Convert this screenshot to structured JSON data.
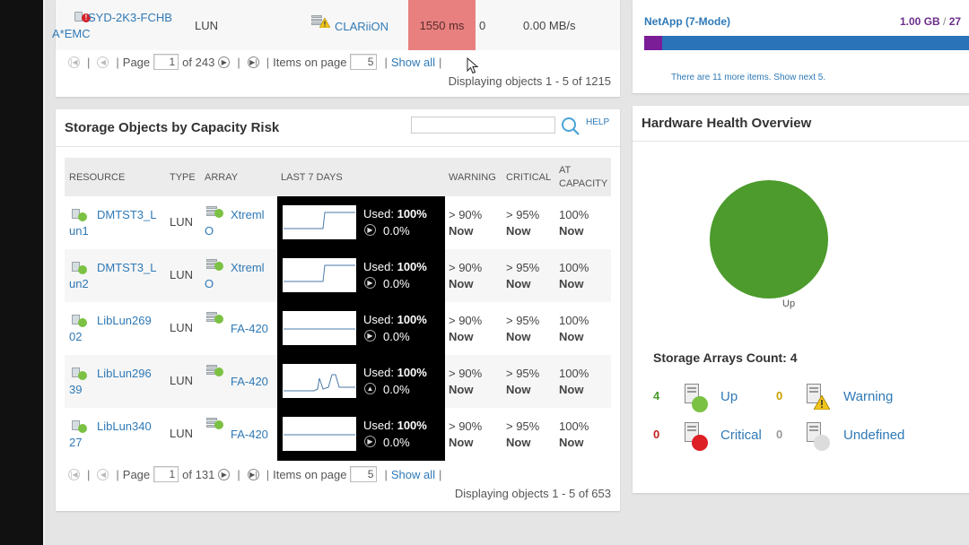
{
  "top_panel": {
    "row": {
      "resource_line1": "SYD-2K3-FCHB",
      "resource_line2": "A*EMC",
      "type": "LUN",
      "array": "CLARiiON",
      "latency": "1550 ms",
      "io": "0",
      "throughput": "0.00 MB/s"
    },
    "pager": {
      "page_label": "Page",
      "page": "1",
      "of_text": "of 243",
      "items_label": "Items on page",
      "items": "5",
      "show_all": "Show all"
    },
    "displaying": "Displaying objects 1 - 5 of 1215"
  },
  "netapp": {
    "name": "NetApp (7-Mode)",
    "used": "1.00 GB",
    "total": "27",
    "used_fraction": 0.05,
    "more_items": "There are 11 more items. Show next 5."
  },
  "capacity_panel": {
    "title": "Storage Objects by Capacity Risk",
    "help": "HELP",
    "headers": [
      "RESOURCE",
      "TYPE",
      "ARRAY",
      "LAST 7 DAYS",
      "WARNING",
      "CRITICAL",
      "AT",
      "CAPACITY"
    ],
    "rows": [
      {
        "res1": "DMTST3_L",
        "res2": "un1",
        "type": "LUN",
        "arr1": "Xtreml",
        "arr2": "O",
        "used_label": "Used:",
        "used": "100%",
        "trend": "0.0%",
        "trend_dir": "right",
        "spark": "step",
        "warning": "> 90%",
        "critical": "> 95%",
        "capacity": "100%",
        "when": "Now"
      },
      {
        "res1": "DMTST3_L",
        "res2": "un2",
        "type": "LUN",
        "arr1": "Xtreml",
        "arr2": "O",
        "used_label": "Used:",
        "used": "100%",
        "trend": "0.0%",
        "trend_dir": "right",
        "spark": "step",
        "warning": "> 90%",
        "critical": "> 95%",
        "capacity": "100%",
        "when": "Now"
      },
      {
        "res1": "LibLun269",
        "res2": "02",
        "type": "LUN",
        "arr1": "FA-420",
        "arr2": "",
        "used_label": "Used:",
        "used": "100%",
        "trend": "0.0%",
        "trend_dir": "right",
        "spark": "flat",
        "warning": "> 90%",
        "critical": "> 95%",
        "capacity": "100%",
        "when": "Now"
      },
      {
        "res1": "LibLun296",
        "res2": "39",
        "type": "LUN",
        "arr1": "FA-420",
        "arr2": "",
        "used_label": "Used:",
        "used": "100%",
        "trend": "0.0%",
        "trend_dir": "up",
        "spark": "bump",
        "warning": "> 90%",
        "critical": "> 95%",
        "capacity": "100%",
        "when": "Now"
      },
      {
        "res1": "LibLun340",
        "res2": "27",
        "type": "LUN",
        "arr1": "FA-420",
        "arr2": "",
        "used_label": "Used:",
        "used": "100%",
        "trend": "0.0%",
        "trend_dir": "right",
        "spark": "flat",
        "warning": "> 90%",
        "critical": "> 95%",
        "capacity": "100%",
        "when": "Now"
      }
    ],
    "pager": {
      "page_label": "Page",
      "page": "1",
      "of_text": "of 131",
      "items_label": "Items on page",
      "items": "5",
      "show_all": "Show all"
    },
    "displaying": "Displaying objects 1 - 5 of 653"
  },
  "health": {
    "title": "Hardware Health Overview",
    "pie_label": "Up",
    "arrays_count": "Storage Arrays Count: 4",
    "status": [
      {
        "label": "Up",
        "count": "4",
        "color": "#7bc143"
      },
      {
        "label": "Warning",
        "count": "0",
        "color": "#f0c419"
      },
      {
        "label": "Critical",
        "count": "0",
        "color": "#dd1f26"
      },
      {
        "label": "Undefined",
        "count": "0",
        "color": "#dcdcdc"
      }
    ]
  }
}
